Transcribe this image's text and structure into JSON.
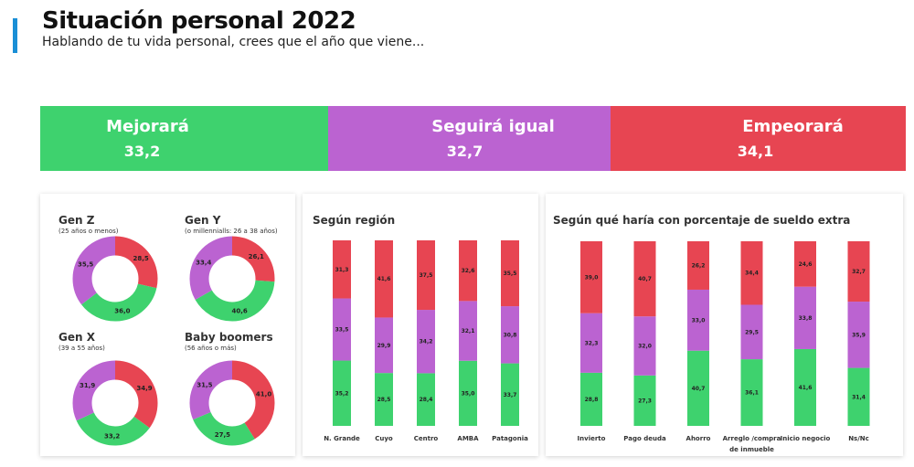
{
  "header": {
    "title": "Situación personal 2022",
    "subtitle": "Hablando de tu vida personal, crees que el año que viene..."
  },
  "colors": {
    "accent": "#1a8fd6",
    "green": "#3ed26e",
    "purple": "#bb63d1",
    "red": "#e74552"
  },
  "summary": [
    {
      "label": "Mejorará",
      "value": "33,2"
    },
    {
      "label": "Seguirá igual",
      "value": "32,7"
    },
    {
      "label": "Empeorará",
      "value": "34,1"
    }
  ],
  "generations": [
    {
      "name": "Gen Z",
      "sub": "(25 años o menos)"
    },
    {
      "name": "Gen Y",
      "sub": "(o millennialls: 26 a 38 años)"
    },
    {
      "name": "Gen X",
      "sub": "(39 a 55 años)"
    },
    {
      "name": "Baby boomers",
      "sub": "(56 años o más)"
    }
  ],
  "region_panel": {
    "title": "Según región"
  },
  "salary_panel": {
    "title": "Según qué haría con porcentaje de sueldo extra"
  },
  "chart_data": [
    {
      "type": "bar",
      "categories": [
        "Mejorará",
        "Seguirá igual",
        "Empeorará"
      ],
      "values": [
        33.2,
        32.7,
        34.1
      ]
    },
    {
      "type": "pie",
      "categories": [
        "Gen Z",
        "Gen Y",
        "Gen X",
        "Baby boomers"
      ],
      "series": [
        {
          "name": "Mejorará",
          "values": [
            36.0,
            40.6,
            33.2,
            27.5
          ]
        },
        {
          "name": "Seguirá igual",
          "values": [
            35.5,
            33.4,
            31.9,
            31.5
          ]
        },
        {
          "name": "Empeorará",
          "values": [
            28.5,
            26.1,
            34.9,
            41.0
          ]
        }
      ]
    },
    {
      "type": "bar",
      "title": "Según región",
      "categories": [
        "N. Grande",
        "Cuyo",
        "Centro",
        "AMBA",
        "Patagonia"
      ],
      "series": [
        {
          "name": "Mejorará",
          "values": [
            35.2,
            28.5,
            28.4,
            35.0,
            33.7
          ]
        },
        {
          "name": "Seguirá igual",
          "values": [
            33.5,
            29.9,
            34.2,
            32.1,
            30.8
          ]
        },
        {
          "name": "Empeorará",
          "values": [
            31.3,
            41.6,
            37.5,
            32.6,
            35.5
          ]
        }
      ]
    },
    {
      "type": "bar",
      "title": "Según qué haría con porcentaje de sueldo extra",
      "categories": [
        "Invierto",
        "Pago deuda",
        "Ahorro",
        "Arreglo /compra de inmueble",
        "Inicio negocio",
        "Ns/Nc"
      ],
      "category_lines": [
        [
          "Invierto"
        ],
        [
          "Pago deuda"
        ],
        [
          "Ahorro"
        ],
        [
          "Arreglo /compra",
          "de inmueble"
        ],
        [
          "Inicio negocio"
        ],
        [
          "Ns/Nc"
        ]
      ],
      "series": [
        {
          "name": "Mejorará",
          "values": [
            28.8,
            27.3,
            40.7,
            36.1,
            41.6,
            31.4
          ]
        },
        {
          "name": "Seguirá igual",
          "values": [
            32.3,
            32.0,
            33.0,
            29.5,
            33.8,
            35.9
          ]
        },
        {
          "name": "Empeorará",
          "values": [
            39.0,
            40.7,
            26.2,
            34.4,
            24.6,
            32.7
          ]
        }
      ]
    }
  ]
}
